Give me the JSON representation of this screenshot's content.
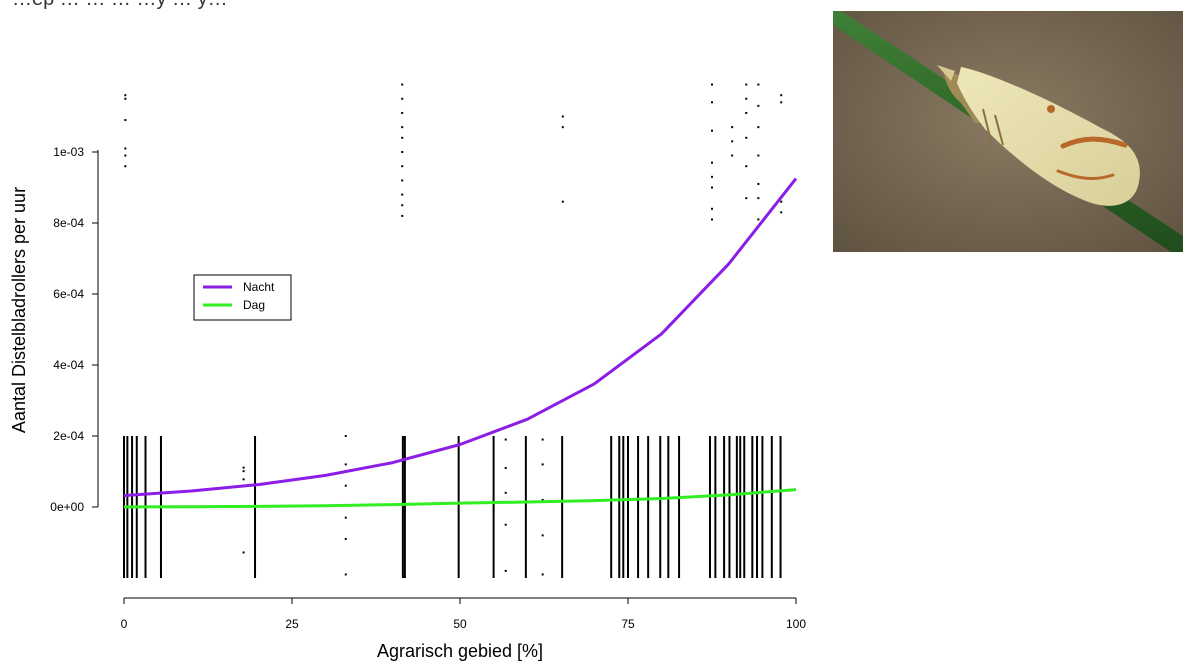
{
  "page": {
    "title_fragment": "…ep … … … …y … y…"
  },
  "photo": {
    "subject": "moth-on-grass-blade",
    "colors": {
      "background": "#7a6a52",
      "blade": "#2f6a2a",
      "wing": "#e4dcaa",
      "wing_mark": "#b8682a"
    }
  },
  "chart_data": {
    "type": "line",
    "xlabel": "Agrarisch gebied [%]",
    "ylabel": "Aantal Distelbladrollers per uur",
    "xlim": [
      0,
      100
    ],
    "ylim": [
      -0.00022,
      0.0012
    ],
    "x_ticks": [
      0,
      25,
      50,
      75,
      100
    ],
    "x_tick_labels": [
      "0",
      "25",
      "50",
      "75",
      "100"
    ],
    "y_ticks": [
      0,
      0.0002,
      0.0004,
      0.0006,
      0.0008,
      0.001
    ],
    "y_tick_labels": [
      "0e+00",
      "2e-04",
      "4e-04",
      "6e-04",
      "8e-04",
      "1e-03"
    ],
    "grid": false,
    "legend": {
      "placement": "left",
      "entries": [
        "Nacht",
        "Dag"
      ]
    },
    "series": [
      {
        "name": "Nacht",
        "color": "#8b1ee6",
        "x": [
          0,
          10,
          20,
          30,
          40,
          50,
          60,
          70,
          80,
          90,
          100
        ],
        "y": [
          3.2e-05,
          4.5e-05,
          6.3e-05,
          8.9e-05,
          0.000125,
          0.000176,
          0.000247,
          0.000347,
          0.000488,
          0.000685,
          0.000925
        ]
      },
      {
        "name": "Dag",
        "color": "#33ee22",
        "x": [
          0,
          10,
          20,
          30,
          40,
          50,
          60,
          70,
          80,
          90,
          100
        ],
        "y": [
          3e-07,
          8e-07,
          1.6e-06,
          3.3e-06,
          6.7e-06,
          1.1e-05,
          1.4e-05,
          1.8e-05,
          2.4e-05,
          3.4e-05,
          4.9e-05
        ]
      }
    ],
    "observation_columns": {
      "color": "#000000",
      "full_x": [
        0,
        0.5,
        1.2,
        1.9,
        3.2,
        5.5,
        19.5,
        41.5,
        41.8,
        49.8,
        55,
        59.8,
        65.2,
        72.5,
        73.7,
        74.3,
        75,
        76.5,
        78,
        79.8,
        81,
        82.6,
        87.2,
        88,
        89.3,
        90.1,
        91.2,
        91.7,
        92.3,
        93.5,
        94.2,
        95,
        96.4,
        97.7
      ],
      "full_y_range": [
        -0.0002,
        0.0002
      ],
      "sparse": [
        {
          "x": 17.8,
          "y": [
            0.000111,
            0.000101,
            7.8e-05,
            -0.000128
          ]
        },
        {
          "x": 33,
          "y": [
            0.0002,
            0.00012,
            6e-05,
            -3e-05,
            -9e-05,
            -0.00019
          ]
        },
        {
          "x": 56.8,
          "y": [
            0.00019,
            0.00011,
            4e-05,
            -5e-05,
            -0.00018
          ]
        },
        {
          "x": 62.3,
          "y": [
            0.00019,
            0.00012,
            2e-05,
            -8e-05,
            -0.00019
          ]
        },
        {
          "x": 0.2,
          "y": [
            0.00116,
            0.00115,
            0.00109,
            0.00101,
            0.00099,
            0.00096
          ]
        },
        {
          "x": 41.4,
          "y": [
            0.00119,
            0.00115,
            0.00111,
            0.00107,
            0.00104,
            0.001,
            0.00096,
            0.00092,
            0.00088,
            0.00085,
            0.00082
          ]
        },
        {
          "x": 65.3,
          "y": [
            0.0011,
            0.00107,
            0.00086
          ]
        },
        {
          "x": 87.5,
          "y": [
            0.00119,
            0.00114,
            0.00106,
            0.00097,
            0.00093,
            0.0009,
            0.00084,
            0.00081
          ]
        },
        {
          "x": 90.5,
          "y": [
            0.00107,
            0.00103,
            0.00099
          ]
        },
        {
          "x": 92.6,
          "y": [
            0.00119,
            0.00115,
            0.00111,
            0.00104,
            0.00096,
            0.00087
          ]
        },
        {
          "x": 94.4,
          "y": [
            0.00119,
            0.00113,
            0.00107,
            0.00099,
            0.00091,
            0.00087,
            0.00081
          ]
        },
        {
          "x": 97.8,
          "y": [
            0.00116,
            0.00114,
            0.00086,
            0.00083
          ]
        }
      ]
    }
  }
}
